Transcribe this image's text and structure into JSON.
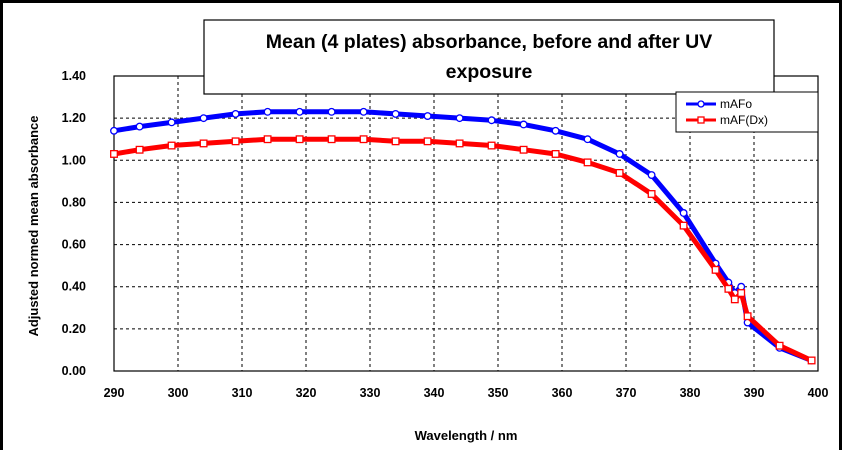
{
  "chart_data": {
    "type": "line",
    "title_lines": [
      "Mean (4 plates) absorbance, before and after UV",
      "exposure"
    ],
    "xlabel": "Wavelength / nm",
    "ylabel": "Adjusted normed mean absorbance",
    "xlim": [
      290,
      400
    ],
    "ylim": [
      0,
      1.4
    ],
    "x_ticks": [
      "290",
      "300",
      "310",
      "320",
      "330",
      "340",
      "350",
      "360",
      "370",
      "380",
      "390",
      "400"
    ],
    "y_ticks": [
      "0.00",
      "0.20",
      "0.40",
      "0.60",
      "0.80",
      "1.00",
      "1.20",
      "1.40"
    ],
    "grid": true,
    "legend_position": "top-right",
    "series": [
      {
        "name": "mAFo",
        "color": "#0000ff",
        "marker": "circle",
        "x": [
          290,
          294,
          299,
          304,
          309,
          314,
          319,
          324,
          329,
          334,
          339,
          344,
          349,
          354,
          359,
          364,
          369,
          374,
          379,
          384,
          386,
          387,
          388,
          389,
          394,
          399
        ],
        "y": [
          1.14,
          1.16,
          1.18,
          1.2,
          1.22,
          1.23,
          1.23,
          1.23,
          1.23,
          1.22,
          1.21,
          1.2,
          1.19,
          1.17,
          1.14,
          1.1,
          1.03,
          0.93,
          0.75,
          0.51,
          0.42,
          0.37,
          0.4,
          0.23,
          0.11,
          0.05
        ]
      },
      {
        "name": "mAF(Dx)",
        "color": "#ff0000",
        "marker": "square",
        "x": [
          290,
          294,
          299,
          304,
          309,
          314,
          319,
          324,
          329,
          334,
          339,
          344,
          349,
          354,
          359,
          364,
          369,
          374,
          379,
          384,
          386,
          387,
          388,
          389,
          394,
          399
        ],
        "y": [
          1.03,
          1.05,
          1.07,
          1.08,
          1.09,
          1.1,
          1.1,
          1.1,
          1.1,
          1.09,
          1.09,
          1.08,
          1.07,
          1.05,
          1.03,
          0.99,
          0.94,
          0.84,
          0.69,
          0.48,
          0.39,
          0.34,
          0.37,
          0.26,
          0.12,
          0.05
        ]
      }
    ]
  }
}
